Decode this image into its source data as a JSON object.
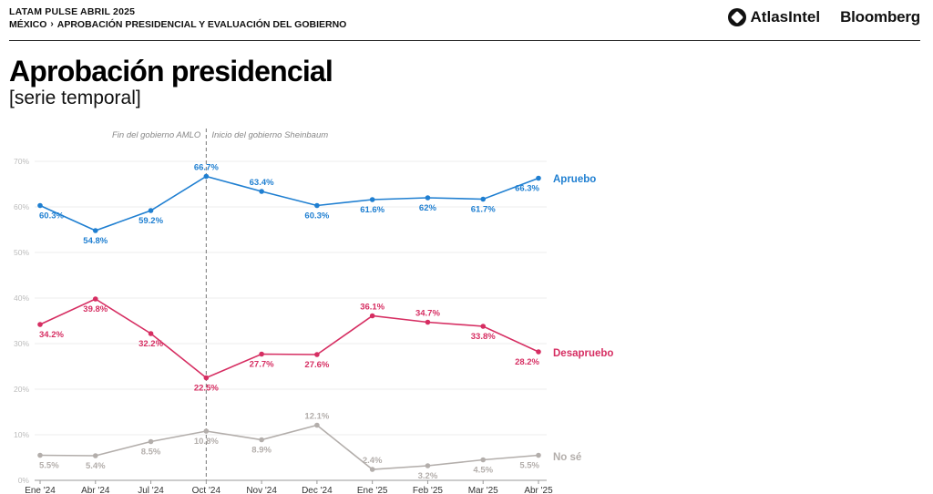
{
  "header": {
    "kicker": "LATAM PULSE ABRIL 2025",
    "breadcrumb_country": "MÉXICO",
    "breadcrumb_topic": "APROBACIÓN PRESIDENCIAL Y EVALUACIÓN DEL GOBIERNO",
    "brand_atlas": "AtlasIntel",
    "brand_bloomberg": "Bloomberg"
  },
  "chart_data": {
    "type": "line",
    "title": "Aprobación presidencial",
    "subtitle": "[serie temporal]",
    "categories": [
      "Ene '24",
      "Abr '24",
      "Jul '24",
      "Oct '24",
      "Nov '24",
      "Dec '24",
      "Ene '25",
      "Feb '25",
      "Mar '25",
      "Abr '25"
    ],
    "ylim": [
      0,
      70
    ],
    "yticks": [
      "0%",
      "10%",
      "20%",
      "30%",
      "40%",
      "50%",
      "60%",
      "70%"
    ],
    "grid": true,
    "annotations": {
      "left_text": "Fin del gobierno AMLO",
      "right_text": "Inicio del gobierno Sheinbaum",
      "marker_category": "Oct '24"
    },
    "series": [
      {
        "name": "Apruebo",
        "color": "#1f7fd1",
        "values": [
          60.3,
          54.8,
          59.2,
          66.7,
          63.4,
          60.3,
          61.6,
          62,
          61.7,
          66.3
        ],
        "labels": [
          "60.3%",
          "54.8%",
          "59.2%",
          "66.7%",
          "63.4%",
          "60.3%",
          "61.6%",
          "62%",
          "61.7%",
          "66.3%"
        ]
      },
      {
        "name": "Desapruebo",
        "color": "#d62e62",
        "values": [
          34.2,
          39.8,
          32.2,
          22.5,
          27.7,
          27.6,
          36.1,
          34.7,
          33.8,
          28.2
        ],
        "labels": [
          "34.2%",
          "39.8%",
          "32.2%",
          "22.5%",
          "27.7%",
          "27.6%",
          "36.1%",
          "34.7%",
          "33.8%",
          "28.2%"
        ]
      },
      {
        "name": "No sé",
        "color": "#b3aeab",
        "values": [
          5.5,
          5.4,
          8.5,
          10.8,
          8.9,
          12.1,
          2.4,
          3.2,
          4.5,
          5.5
        ],
        "labels": [
          "5.5%",
          "5.4%",
          "8.5%",
          "10.8%",
          "8.9%",
          "12.1%",
          "2.4%",
          "3.2%",
          "4.5%",
          "5.5%"
        ]
      }
    ]
  }
}
